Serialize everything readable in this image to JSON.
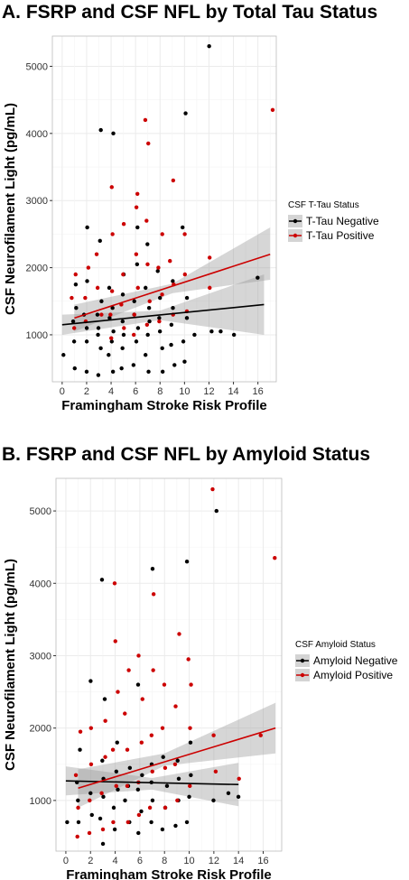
{
  "chart_data": [
    {
      "type": "scatter",
      "panel_title": "A. FSRP and CSF NFL by Total Tau Status",
      "xlabel": "Framingham Stroke Risk Profile",
      "ylabel": "CSF Neurofilament Light (pg/mL)",
      "xlim": [
        -0.8,
        17.5
      ],
      "ylim": [
        300,
        5450
      ],
      "x_ticks": [
        0,
        2,
        4,
        6,
        8,
        10,
        12,
        14,
        16
      ],
      "y_ticks": [
        1000,
        2000,
        3000,
        4000,
        5000
      ],
      "grid": true,
      "legend": {
        "title": "CSF T-Tau Status",
        "position": "right"
      },
      "series": [
        {
          "name": "T-Tau Negative",
          "color": "#000000",
          "fit": {
            "x": [
              0,
              16.5
            ],
            "y": [
              1150,
              1450
            ],
            "ci_low": [
              [
                0,
                1000
              ],
              [
                8,
                1220
              ],
              [
                16.5,
                1000
              ]
            ],
            "ci_high": [
              [
                0,
                1300
              ],
              [
                8,
                1360
              ],
              [
                16.5,
                1900
              ]
            ]
          },
          "points": [
            [
              0,
              700
            ],
            [
              1,
              500
            ],
            [
              1,
              900
            ],
            [
              1,
              1200
            ],
            [
              1,
              1400
            ],
            [
              1,
              1750
            ],
            [
              2,
              450
            ],
            [
              2,
              900
            ],
            [
              2,
              1100
            ],
            [
              2,
              1300
            ],
            [
              2,
              1800
            ],
            [
              2,
              2600
            ],
            [
              3,
              400
            ],
            [
              3,
              800
            ],
            [
              3,
              1000
            ],
            [
              3,
              1100
            ],
            [
              3,
              1300
            ],
            [
              3,
              1500
            ],
            [
              3,
              2400
            ],
            [
              3,
              4050
            ],
            [
              4,
              450
            ],
            [
              4,
              700
            ],
            [
              4,
              900
            ],
            [
              4,
              1050
            ],
            [
              4,
              1250
            ],
            [
              4,
              1400
            ],
            [
              4,
              1700
            ],
            [
              4,
              4000
            ],
            [
              5,
              500
            ],
            [
              5,
              800
            ],
            [
              5,
              1000
            ],
            [
              5,
              1200
            ],
            [
              5,
              1600
            ],
            [
              5,
              1900
            ],
            [
              6,
              550
            ],
            [
              6,
              900
            ],
            [
              6,
              1100
            ],
            [
              6,
              1300
            ],
            [
              6,
              1500
            ],
            [
              6,
              2050
            ],
            [
              6,
              2600
            ],
            [
              7,
              450
            ],
            [
              7,
              700
            ],
            [
              7,
              1000
            ],
            [
              7,
              1200
            ],
            [
              7,
              1400
            ],
            [
              7,
              1700
            ],
            [
              7,
              2350
            ],
            [
              8,
              450
            ],
            [
              8,
              800
            ],
            [
              8,
              1050
            ],
            [
              8,
              1250
            ],
            [
              8,
              1550
            ],
            [
              8,
              1950
            ],
            [
              9,
              550
            ],
            [
              9,
              850
            ],
            [
              9,
              1150
            ],
            [
              9,
              1400
            ],
            [
              9,
              1800
            ],
            [
              10,
              600
            ],
            [
              10,
              900
            ],
            [
              10,
              1250
            ],
            [
              10,
              1550
            ],
            [
              10,
              2600
            ],
            [
              10,
              4300
            ],
            [
              11,
              1000
            ],
            [
              12,
              1050
            ],
            [
              12,
              5300
            ],
            [
              13,
              1050
            ],
            [
              14,
              1000
            ],
            [
              16,
              1850
            ]
          ]
        },
        {
          "name": "T-Tau Positive",
          "color": "#cc0000",
          "fit": {
            "x": [
              1,
              17
            ],
            "y": [
              1250,
              2200
            ],
            "ci_low": [
              [
                1,
                1050
              ],
              [
                9,
                1620
              ],
              [
                17,
                1820
              ]
            ],
            "ci_high": [
              [
                1,
                1450
              ],
              [
                9,
                1760
              ],
              [
                17,
                2600
              ]
            ]
          },
          "points": [
            [
              1,
              1100
            ],
            [
              1,
              1550
            ],
            [
              1,
              1900
            ],
            [
              2,
              1200
            ],
            [
              2,
              1550
            ],
            [
              2,
              2000
            ],
            [
              3,
              1300
            ],
            [
              3,
              1700
            ],
            [
              3,
              2200
            ],
            [
              4,
              950
            ],
            [
              4,
              1300
            ],
            [
              4,
              1650
            ],
            [
              4,
              2500
            ],
            [
              4,
              3200
            ],
            [
              5,
              1100
            ],
            [
              5,
              1450
            ],
            [
              5,
              1900
            ],
            [
              5,
              2650
            ],
            [
              6,
              1000
            ],
            [
              6,
              1300
            ],
            [
              6,
              1700
            ],
            [
              6,
              2200
            ],
            [
              6,
              2900
            ],
            [
              6,
              3100
            ],
            [
              7,
              1150
            ],
            [
              7,
              1500
            ],
            [
              7,
              2050
            ],
            [
              7,
              2700
            ],
            [
              7,
              3850
            ],
            [
              7,
              4200
            ],
            [
              8,
              1200
            ],
            [
              8,
              1600
            ],
            [
              8,
              2000
            ],
            [
              8,
              2500
            ],
            [
              9,
              1300
            ],
            [
              9,
              1750
            ],
            [
              9,
              2100
            ],
            [
              9,
              3300
            ],
            [
              10,
              1350
            ],
            [
              10,
              1900
            ],
            [
              10,
              2500
            ],
            [
              12,
              1700
            ],
            [
              12,
              2150
            ],
            [
              17,
              4350
            ]
          ]
        }
      ]
    },
    {
      "type": "scatter",
      "panel_title": "B. FSRP and CSF NFL by Amyloid Status",
      "xlabel": "Framingham Stroke Risk Profile",
      "ylabel": "CSF Neurofilament Light (pg/mL)",
      "xlim": [
        -0.8,
        17.5
      ],
      "ylim": [
        300,
        5450
      ],
      "x_ticks": [
        0,
        2,
        4,
        6,
        8,
        10,
        12,
        14,
        16
      ],
      "y_ticks": [
        1000,
        2000,
        3000,
        4000,
        5000
      ],
      "grid": true,
      "legend": {
        "title": "CSF Amyloid Status",
        "position": "right"
      },
      "series": [
        {
          "name": "Amyloid Negative",
          "color": "#000000",
          "fit": {
            "x": [
              0,
              14
            ],
            "y": [
              1270,
              1220
            ],
            "ci_low": [
              [
                0,
                1070
              ],
              [
                7,
                1150
              ],
              [
                14,
                920
              ]
            ],
            "ci_high": [
              [
                0,
                1470
              ],
              [
                7,
                1310
              ],
              [
                14,
                1520
              ]
            ]
          },
          "points": [
            [
              0,
              700
            ],
            [
              1,
              700
            ],
            [
              1,
              1000
            ],
            [
              1,
              1250
            ],
            [
              1,
              1700
            ],
            [
              2,
              800
            ],
            [
              2,
              1100
            ],
            [
              2,
              2650
            ],
            [
              3,
              400
            ],
            [
              3,
              750
            ],
            [
              3,
              1050
            ],
            [
              3,
              1300
            ],
            [
              3,
              1550
            ],
            [
              3,
              2400
            ],
            [
              3,
              4050
            ],
            [
              4,
              600
            ],
            [
              4,
              900
            ],
            [
              4,
              1150
            ],
            [
              4,
              1400
            ],
            [
              4,
              1800
            ],
            [
              5,
              700
            ],
            [
              5,
              1000
            ],
            [
              5,
              1200
            ],
            [
              5,
              1450
            ],
            [
              6,
              550
            ],
            [
              6,
              850
            ],
            [
              6,
              1150
            ],
            [
              6,
              1350
            ],
            [
              6,
              2600
            ],
            [
              7,
              700
            ],
            [
              7,
              1000
            ],
            [
              7,
              1250
            ],
            [
              7,
              1500
            ],
            [
              7,
              4200
            ],
            [
              8,
              600
            ],
            [
              8,
              900
            ],
            [
              8,
              1200
            ],
            [
              8,
              1600
            ],
            [
              9,
              650
            ],
            [
              9,
              1000
            ],
            [
              9,
              1300
            ],
            [
              9,
              1550
            ],
            [
              10,
              700
            ],
            [
              10,
              1050
            ],
            [
              10,
              1350
            ],
            [
              10,
              1800
            ],
            [
              10,
              4300
            ],
            [
              12,
              1000
            ],
            [
              12,
              5000
            ],
            [
              13,
              1100
            ],
            [
              14,
              1050
            ]
          ]
        },
        {
          "name": "Amyloid Positive",
          "color": "#cc0000",
          "fit": {
            "x": [
              1,
              17
            ],
            "y": [
              1170,
              2000
            ],
            "ci_low": [
              [
                1,
                900
              ],
              [
                8,
                1480
              ],
              [
                17,
                1650
              ]
            ],
            "ci_high": [
              [
                1,
                1430
              ],
              [
                8,
                1650
              ],
              [
                17,
                2350
              ]
            ]
          },
          "points": [
            [
              1,
              500
            ],
            [
              1,
              900
            ],
            [
              1,
              1350
            ],
            [
              1,
              1950
            ],
            [
              2,
              550
            ],
            [
              2,
              1000
            ],
            [
              2,
              1500
            ],
            [
              2,
              2000
            ],
            [
              3,
              600
            ],
            [
              3,
              1100
            ],
            [
              3,
              1600
            ],
            [
              3,
              2100
            ],
            [
              4,
              700
            ],
            [
              4,
              1200
            ],
            [
              4,
              1700
            ],
            [
              4,
              2500
            ],
            [
              4,
              3200
            ],
            [
              4,
              4000
            ],
            [
              5,
              700
            ],
            [
              5,
              1200
            ],
            [
              5,
              1700
            ],
            [
              5,
              2200
            ],
            [
              5,
              2800
            ],
            [
              6,
              800
            ],
            [
              6,
              1250
            ],
            [
              6,
              1800
            ],
            [
              6,
              2400
            ],
            [
              6,
              3000
            ],
            [
              7,
              900
            ],
            [
              7,
              1400
            ],
            [
              7,
              1900
            ],
            [
              7,
              2800
            ],
            [
              7,
              3850
            ],
            [
              8,
              900
            ],
            [
              8,
              1450
            ],
            [
              8,
              2000
            ],
            [
              8,
              2600
            ],
            [
              9,
              1000
            ],
            [
              9,
              1500
            ],
            [
              9,
              2300
            ],
            [
              9,
              3300
            ],
            [
              10,
              1200
            ],
            [
              10,
              2000
            ],
            [
              10,
              2600
            ],
            [
              10,
              2950
            ],
            [
              12,
              1400
            ],
            [
              12,
              1900
            ],
            [
              12,
              5300
            ],
            [
              14,
              1300
            ],
            [
              16,
              1900
            ],
            [
              17,
              4350
            ]
          ]
        }
      ]
    }
  ]
}
